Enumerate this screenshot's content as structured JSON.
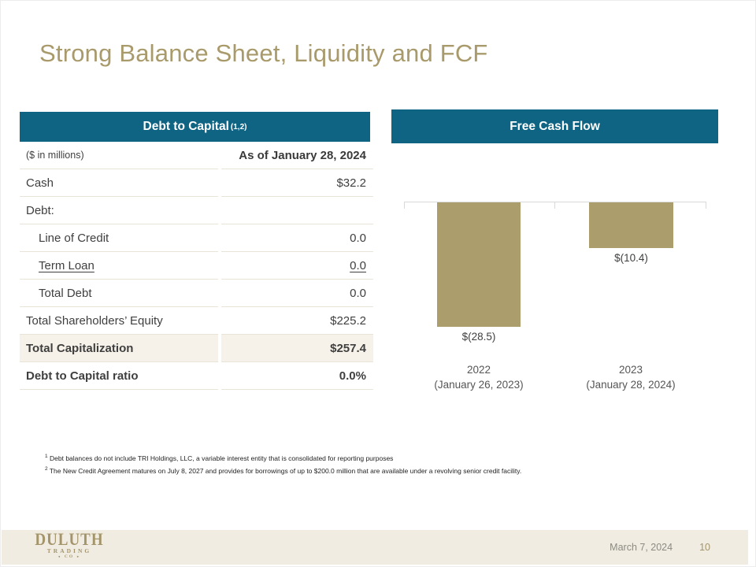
{
  "title": "Strong Balance Sheet, Liquidity and FCF",
  "table": {
    "title": "Debt to Capital",
    "title_sup": "(1,2)",
    "unit_note": "($ in millions)",
    "col_header": "As of January 28, 2024",
    "rows": [
      {
        "label": "Cash",
        "value": "$32.2"
      },
      {
        "label": "Debt:",
        "value": ""
      },
      {
        "label": "Line of Credit",
        "value": "0.0"
      },
      {
        "label": "Term Loan",
        "value": "0.0"
      },
      {
        "label": "Total Debt",
        "value": "0.0"
      },
      {
        "label": "Total Shareholders’ Equity",
        "value": "$225.2"
      },
      {
        "label": "Total Capitalization",
        "value": "$257.4"
      },
      {
        "label": "Debt to Capital ratio",
        "value": "0.0%"
      }
    ]
  },
  "chart_data": {
    "type": "bar",
    "title": "Free Cash Flow",
    "unit": "$ in millions",
    "categories": [
      {
        "year": "2022",
        "date": "(January 26, 2023)"
      },
      {
        "year": "2023",
        "date": "(January 28, 2024)"
      }
    ],
    "values": [
      -28.5,
      -10.4
    ],
    "value_labels": [
      "$(28.5)",
      "$(10.4)"
    ],
    "ylim": [
      -30,
      0
    ],
    "baseline": 0,
    "bar_color": "#AC9E6C",
    "grid": false,
    "legend": false
  },
  "footnotes": [
    {
      "sup": "1",
      "text": "Debt balances do not include TRI Holdings, LLC, a variable interest entity that is consolidated for reporting purposes"
    },
    {
      "sup": "2",
      "text": "The New Credit Agreement matures on July 8, 2027 and provides for borrowings of up to $200.0 million that are available under a revolving senior credit facility."
    }
  ],
  "footer": {
    "logo": {
      "line1": "DULUTH",
      "line2": "TRADING",
      "line3": "CO"
    },
    "date": "March 7, 2024",
    "page": "10"
  },
  "colors": {
    "teal": "#0F6483",
    "bar_gold": "#AC9E6C",
    "title_gold": "#A99A6B",
    "footer_beige": "#F0ECE2",
    "row_shade": "#F6F2E9"
  }
}
